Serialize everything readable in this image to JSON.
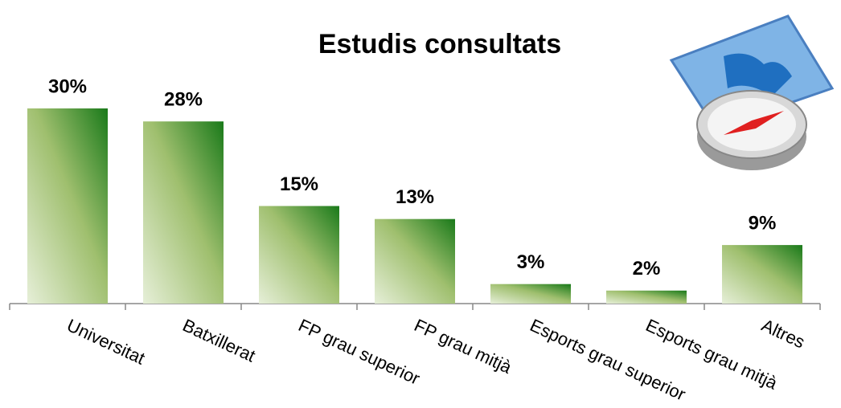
{
  "chart_data": {
    "type": "bar",
    "title": "Estudis consultats",
    "categories": [
      "Universitat",
      "Batxillerat",
      "FP grau superior",
      "FP grau mitjà",
      "Esports grau superior",
      "Esports grau mitjà",
      "Altres"
    ],
    "values": [
      30,
      28,
      15,
      13,
      3,
      2,
      9
    ],
    "value_labels": [
      "30%",
      "28%",
      "15%",
      "13%",
      "3%",
      "2%",
      "9%"
    ],
    "color": "#1a7a1a"
  }
}
